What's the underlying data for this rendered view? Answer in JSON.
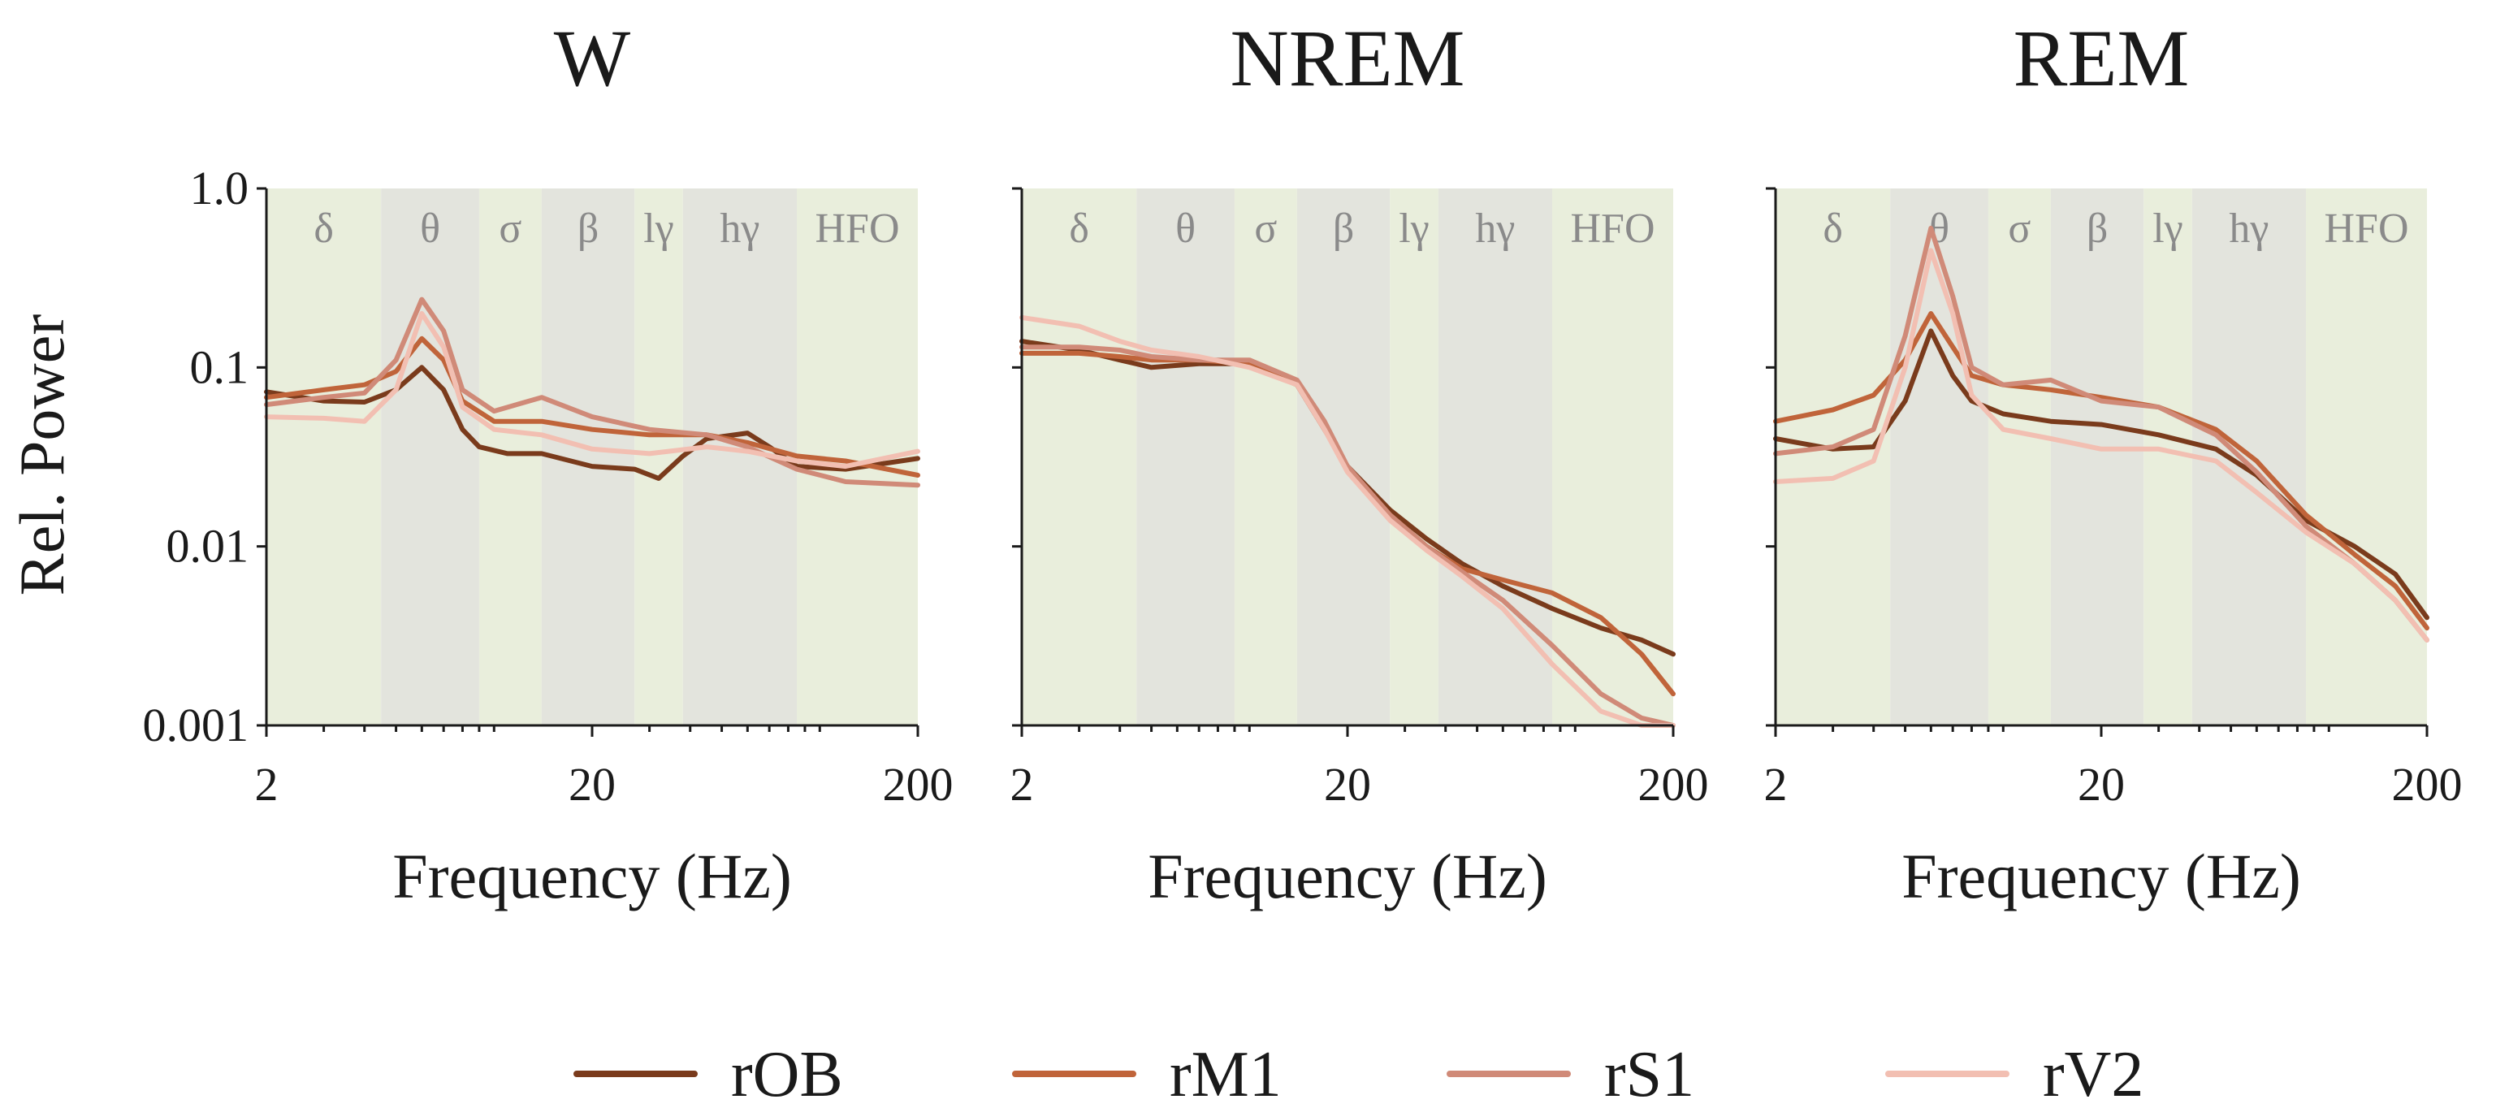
{
  "chart_data": {
    "type": "line",
    "ylabel": "Rel. Power",
    "xlabel": "Frequency (Hz)",
    "xscale": "log",
    "yscale": "log",
    "xlim": [
      2,
      200
    ],
    "ylim": [
      0.001,
      1.0
    ],
    "yticks": [
      "1.0",
      "0.1",
      "0.01",
      "0.001"
    ],
    "xticks": [
      "2",
      "20",
      "200"
    ],
    "bands": [
      {
        "label": "δ",
        "from": 2,
        "to": 4.5,
        "color": "#e9eedc"
      },
      {
        "label": "θ",
        "from": 4.5,
        "to": 9,
        "color": "#e3e4dd"
      },
      {
        "label": "σ",
        "from": 9,
        "to": 14,
        "color": "#e9eedc"
      },
      {
        "label": "β",
        "from": 14,
        "to": 27,
        "color": "#e3e4dd"
      },
      {
        "label": "lγ",
        "from": 27,
        "to": 38,
        "color": "#e9eedc"
      },
      {
        "label": "hγ",
        "from": 38,
        "to": 85,
        "color": "#e3e4dd"
      },
      {
        "label": "HFO",
        "from": 85,
        "to": 200,
        "color": "#e9eedc"
      }
    ],
    "legend": [
      {
        "name": "rOB",
        "color": "#7a3b1c"
      },
      {
        "name": "rM1",
        "color": "#c0643a"
      },
      {
        "name": "rS1",
        "color": "#d08a78"
      },
      {
        "name": "rV2",
        "color": "#f2bfb2"
      }
    ],
    "panels": [
      {
        "title": "W",
        "series": [
          {
            "name": "rOB",
            "points": [
              [
                2,
                0.073
              ],
              [
                3,
                0.065
              ],
              [
                4,
                0.064
              ],
              [
                5,
                0.075
              ],
              [
                6,
                0.1
              ],
              [
                7,
                0.075
              ],
              [
                8,
                0.045
              ],
              [
                9,
                0.036
              ],
              [
                11,
                0.033
              ],
              [
                14,
                0.033
              ],
              [
                20,
                0.028
              ],
              [
                27,
                0.027
              ],
              [
                32,
                0.024
              ],
              [
                38,
                0.032
              ],
              [
                45,
                0.04
              ],
              [
                60,
                0.043
              ],
              [
                70,
                0.036
              ],
              [
                85,
                0.028
              ],
              [
                120,
                0.027
              ],
              [
                200,
                0.031
              ]
            ]
          },
          {
            "name": "rM1",
            "points": [
              [
                2,
                0.068
              ],
              [
                3,
                0.075
              ],
              [
                4,
                0.08
              ],
              [
                5,
                0.095
              ],
              [
                6,
                0.145
              ],
              [
                7,
                0.11
              ],
              [
                8,
                0.065
              ],
              [
                10,
                0.05
              ],
              [
                14,
                0.05
              ],
              [
                20,
                0.045
              ],
              [
                30,
                0.042
              ],
              [
                45,
                0.042
              ],
              [
                60,
                0.038
              ],
              [
                85,
                0.032
              ],
              [
                120,
                0.03
              ],
              [
                200,
                0.025
              ]
            ]
          },
          {
            "name": "rS1",
            "points": [
              [
                2,
                0.062
              ],
              [
                3,
                0.068
              ],
              [
                4,
                0.072
              ],
              [
                5,
                0.11
              ],
              [
                6,
                0.24
              ],
              [
                7,
                0.16
              ],
              [
                8,
                0.075
              ],
              [
                10,
                0.057
              ],
              [
                14,
                0.068
              ],
              [
                20,
                0.053
              ],
              [
                30,
                0.045
              ],
              [
                45,
                0.042
              ],
              [
                60,
                0.036
              ],
              [
                85,
                0.027
              ],
              [
                120,
                0.023
              ],
              [
                200,
                0.022
              ]
            ]
          },
          {
            "name": "rV2",
            "points": [
              [
                2,
                0.053
              ],
              [
                3,
                0.052
              ],
              [
                4,
                0.05
              ],
              [
                5,
                0.075
              ],
              [
                6,
                0.2
              ],
              [
                7,
                0.13
              ],
              [
                8,
                0.06
              ],
              [
                10,
                0.045
              ],
              [
                14,
                0.042
              ],
              [
                20,
                0.035
              ],
              [
                30,
                0.033
              ],
              [
                45,
                0.036
              ],
              [
                60,
                0.034
              ],
              [
                85,
                0.03
              ],
              [
                120,
                0.028
              ],
              [
                200,
                0.034
              ]
            ]
          }
        ]
      },
      {
        "title": "NREM",
        "series": [
          {
            "name": "rOB",
            "points": [
              [
                2,
                0.14
              ],
              [
                3,
                0.125
              ],
              [
                4,
                0.11
              ],
              [
                5,
                0.1
              ],
              [
                7,
                0.105
              ],
              [
                10,
                0.105
              ],
              [
                14,
                0.08
              ],
              [
                17,
                0.045
              ],
              [
                20,
                0.028
              ],
              [
                27,
                0.016
              ],
              [
                35,
                0.011
              ],
              [
                45,
                0.008
              ],
              [
                60,
                0.006
              ],
              [
                85,
                0.0045
              ],
              [
                120,
                0.0035
              ],
              [
                160,
                0.003
              ],
              [
                200,
                0.0025
              ]
            ]
          },
          {
            "name": "rM1",
            "points": [
              [
                2,
                0.12
              ],
              [
                3,
                0.12
              ],
              [
                4,
                0.115
              ],
              [
                5,
                0.11
              ],
              [
                7,
                0.11
              ],
              [
                10,
                0.105
              ],
              [
                14,
                0.08
              ],
              [
                17,
                0.045
              ],
              [
                20,
                0.027
              ],
              [
                27,
                0.015
              ],
              [
                35,
                0.01
              ],
              [
                45,
                0.0075
              ],
              [
                60,
                0.0065
              ],
              [
                85,
                0.0055
              ],
              [
                120,
                0.004
              ],
              [
                160,
                0.0025
              ],
              [
                200,
                0.0015
              ]
            ]
          },
          {
            "name": "rS1",
            "points": [
              [
                2,
                0.13
              ],
              [
                3,
                0.13
              ],
              [
                4,
                0.125
              ],
              [
                5,
                0.115
              ],
              [
                7,
                0.11
              ],
              [
                10,
                0.11
              ],
              [
                14,
                0.085
              ],
              [
                17,
                0.05
              ],
              [
                20,
                0.028
              ],
              [
                27,
                0.015
              ],
              [
                35,
                0.01
              ],
              [
                45,
                0.0072
              ],
              [
                60,
                0.005
              ],
              [
                85,
                0.0028
              ],
              [
                120,
                0.0015
              ],
              [
                160,
                0.0011
              ],
              [
                200,
                0.001
              ]
            ]
          },
          {
            "name": "rV2",
            "points": [
              [
                2,
                0.19
              ],
              [
                3,
                0.17
              ],
              [
                4,
                0.14
              ],
              [
                5,
                0.125
              ],
              [
                7,
                0.115
              ],
              [
                10,
                0.1
              ],
              [
                14,
                0.08
              ],
              [
                17,
                0.045
              ],
              [
                20,
                0.026
              ],
              [
                27,
                0.014
              ],
              [
                35,
                0.0095
              ],
              [
                45,
                0.0068
              ],
              [
                60,
                0.0045
              ],
              [
                85,
                0.0022
              ],
              [
                120,
                0.0012
              ],
              [
                160,
                0.001
              ],
              [
                200,
                0.001
              ]
            ]
          }
        ]
      },
      {
        "title": "REM",
        "series": [
          {
            "name": "rOB",
            "points": [
              [
                2,
                0.04
              ],
              [
                3,
                0.035
              ],
              [
                4,
                0.036
              ],
              [
                5,
                0.065
              ],
              [
                6,
                0.16
              ],
              [
                7,
                0.09
              ],
              [
                8,
                0.065
              ],
              [
                10,
                0.055
              ],
              [
                14,
                0.05
              ],
              [
                20,
                0.048
              ],
              [
                30,
                0.042
              ],
              [
                45,
                0.035
              ],
              [
                60,
                0.025
              ],
              [
                85,
                0.014
              ],
              [
                120,
                0.01
              ],
              [
                160,
                0.007
              ],
              [
                200,
                0.004
              ]
            ]
          },
          {
            "name": "rM1",
            "points": [
              [
                2,
                0.05
              ],
              [
                3,
                0.058
              ],
              [
                4,
                0.07
              ],
              [
                5,
                0.11
              ],
              [
                6,
                0.2
              ],
              [
                7,
                0.13
              ],
              [
                8,
                0.09
              ],
              [
                10,
                0.08
              ],
              [
                14,
                0.075
              ],
              [
                20,
                0.068
              ],
              [
                30,
                0.06
              ],
              [
                45,
                0.045
              ],
              [
                60,
                0.03
              ],
              [
                85,
                0.015
              ],
              [
                120,
                0.009
              ],
              [
                160,
                0.006
              ],
              [
                200,
                0.0035
              ]
            ]
          },
          {
            "name": "rS1",
            "points": [
              [
                2,
                0.033
              ],
              [
                3,
                0.036
              ],
              [
                4,
                0.045
              ],
              [
                5,
                0.15
              ],
              [
                6,
                0.6
              ],
              [
                7,
                0.25
              ],
              [
                8,
                0.1
              ],
              [
                10,
                0.08
              ],
              [
                14,
                0.085
              ],
              [
                20,
                0.065
              ],
              [
                30,
                0.06
              ],
              [
                45,
                0.042
              ],
              [
                60,
                0.026
              ],
              [
                85,
                0.013
              ],
              [
                120,
                0.008
              ],
              [
                160,
                0.005
              ],
              [
                200,
                0.003
              ]
            ]
          },
          {
            "name": "rV2",
            "points": [
              [
                2,
                0.023
              ],
              [
                3,
                0.024
              ],
              [
                4,
                0.03
              ],
              [
                5,
                0.1
              ],
              [
                6,
                0.45
              ],
              [
                7,
                0.2
              ],
              [
                8,
                0.07
              ],
              [
                10,
                0.045
              ],
              [
                14,
                0.04
              ],
              [
                20,
                0.035
              ],
              [
                30,
                0.035
              ],
              [
                45,
                0.03
              ],
              [
                60,
                0.02
              ],
              [
                85,
                0.012
              ],
              [
                120,
                0.008
              ],
              [
                160,
                0.005
              ],
              [
                200,
                0.003
              ]
            ]
          }
        ]
      }
    ]
  }
}
